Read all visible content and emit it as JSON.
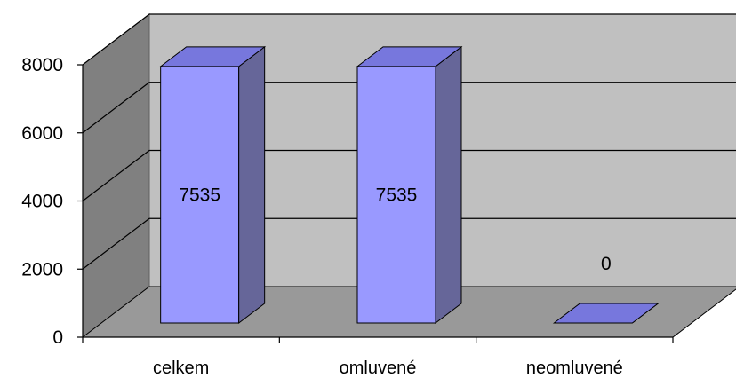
{
  "chart_data": {
    "type": "bar",
    "categories": [
      "celkem",
      "omluvené",
      "neomluvené"
    ],
    "values": [
      7535,
      7535,
      0
    ],
    "data_labels": [
      "7535",
      "7535",
      "0"
    ],
    "yticks": [
      0,
      2000,
      4000,
      6000,
      8000
    ],
    "ylim": [
      0,
      8000
    ],
    "grid": true,
    "three_d": true,
    "colors": {
      "bar_front": "#9999ff",
      "bar_side": "#666699",
      "bar_top": "#7777dd",
      "back_wall": "#c0c0c0",
      "side_wall": "#808080",
      "floor": "#999999",
      "gridline": "#000000"
    }
  }
}
